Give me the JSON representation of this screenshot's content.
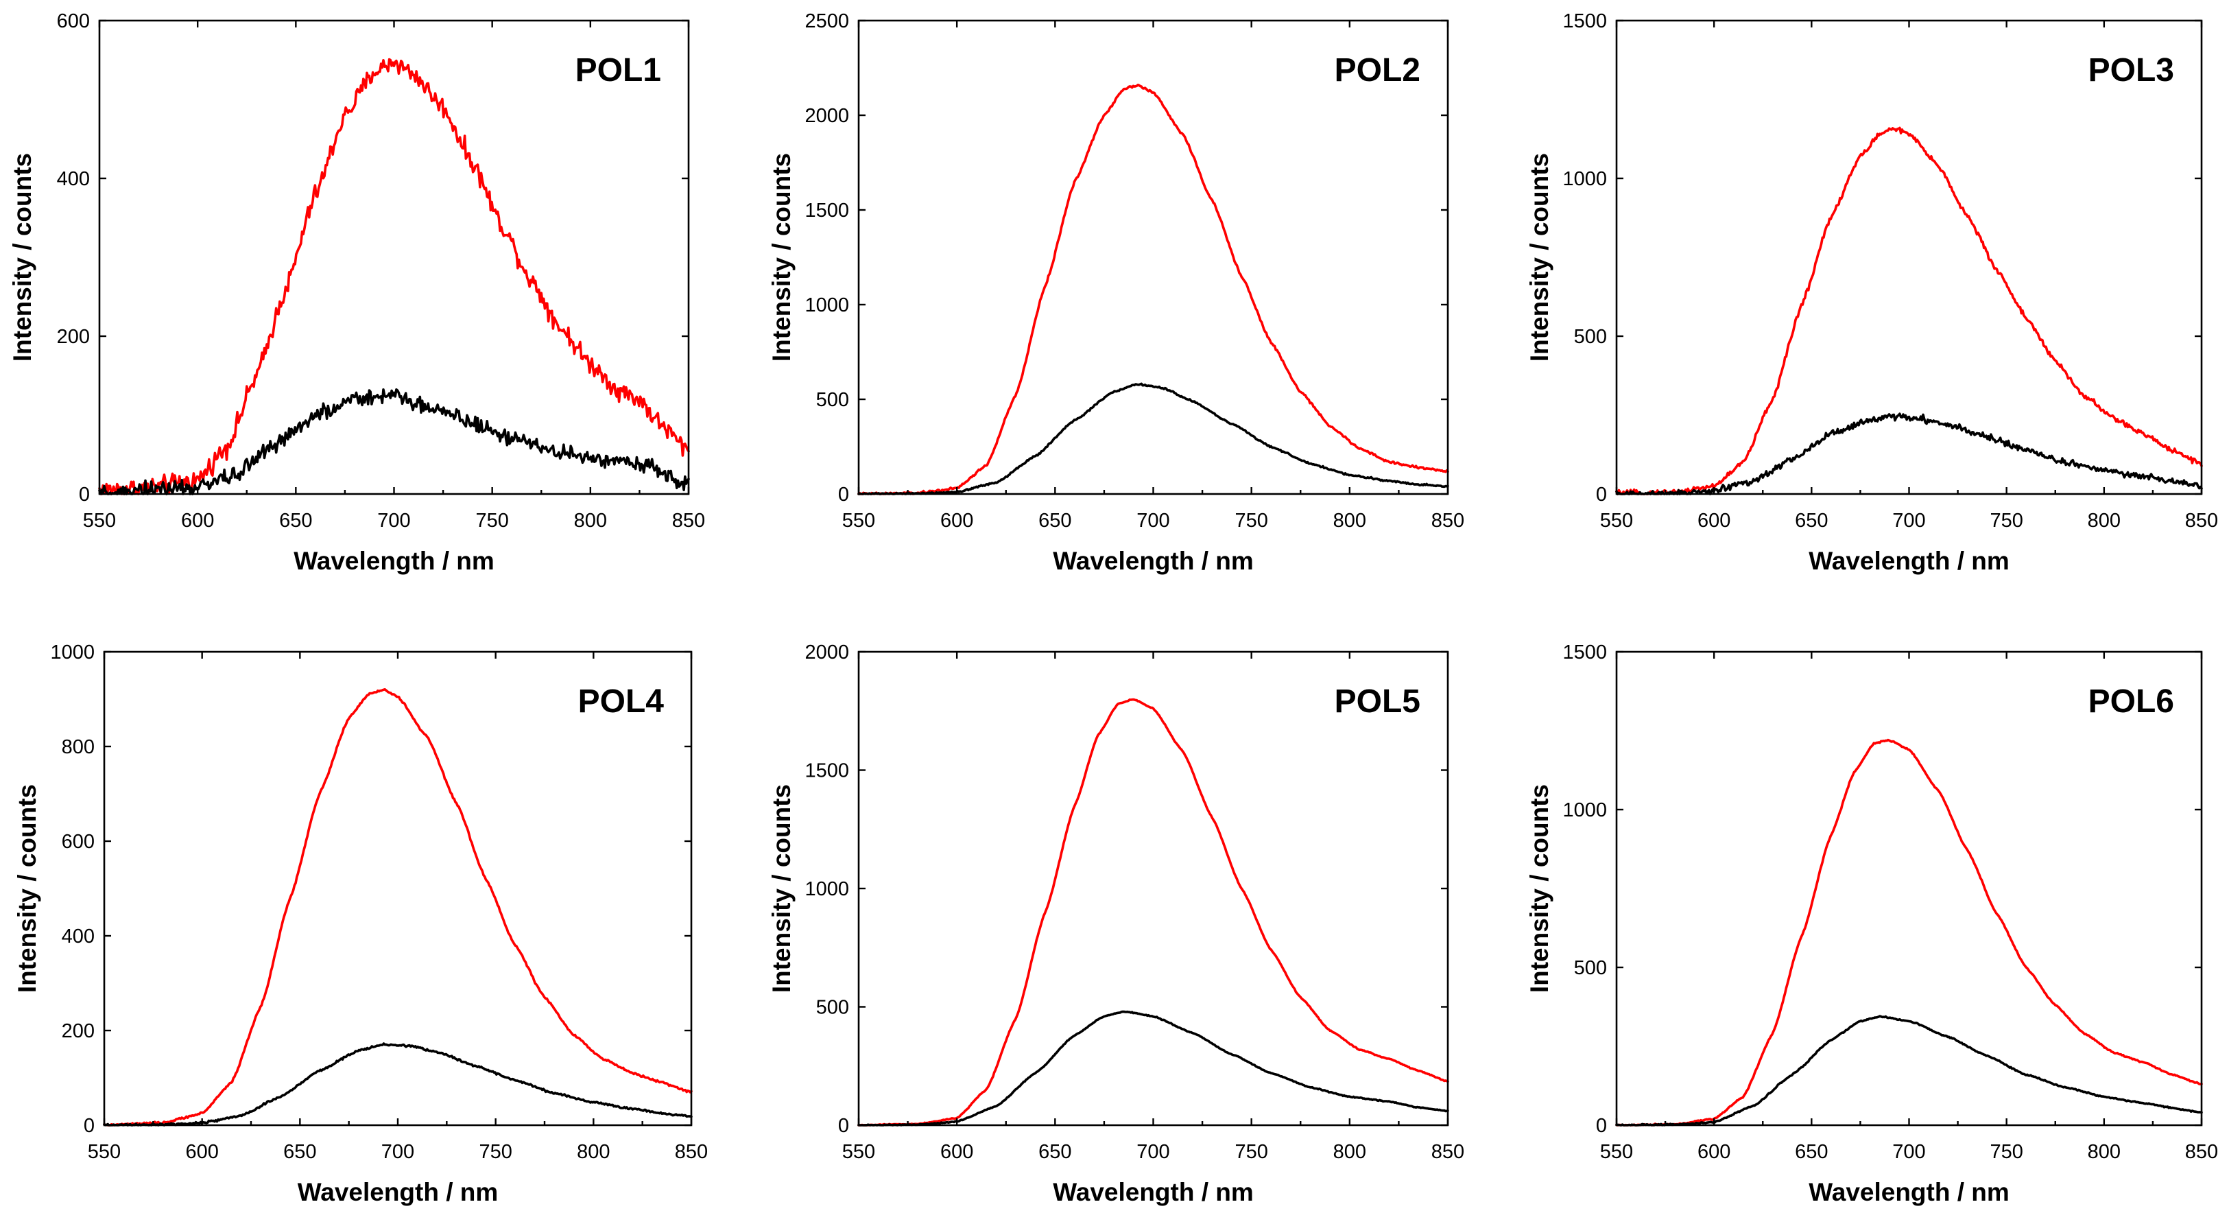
{
  "chart_data": [
    {
      "type": "line",
      "title": "POL1",
      "xlabel": "Wavelength / nm",
      "ylabel": "Intensity / counts",
      "xlim": [
        550,
        850
      ],
      "ylim": [
        0,
        600
      ],
      "xticks": [
        550,
        600,
        650,
        700,
        750,
        800,
        850
      ],
      "yticks": [
        0,
        200,
        400,
        600
      ],
      "series": [
        {
          "name": "red",
          "color": "#ff0000",
          "noise": 6,
          "x": [
            550,
            575,
            600,
            615,
            630,
            645,
            660,
            675,
            690,
            700,
            710,
            725,
            740,
            755,
            770,
            785,
            800,
            815,
            825,
            835,
            850
          ],
          "y": [
            5,
            8,
            18,
            60,
            150,
            260,
            380,
            480,
            535,
            548,
            532,
            490,
            420,
            340,
            270,
            210,
            165,
            130,
            120,
            90,
            55
          ]
        },
        {
          "name": "black",
          "color": "#000000",
          "noise": 5,
          "x": [
            550,
            575,
            600,
            620,
            640,
            660,
            680,
            700,
            720,
            740,
            760,
            780,
            800,
            825,
            850
          ],
          "y": [
            2,
            4,
            8,
            25,
            65,
            100,
            120,
            125,
            110,
            90,
            70,
            55,
            45,
            40,
            10
          ]
        }
      ]
    },
    {
      "type": "line",
      "title": "POL2",
      "xlabel": "Wavelength / nm",
      "ylabel": "Intensity / counts",
      "xlim": [
        550,
        850
      ],
      "ylim": [
        0,
        2500
      ],
      "xticks": [
        550,
        600,
        650,
        700,
        750,
        800,
        850
      ],
      "yticks": [
        0,
        500,
        1000,
        1500,
        2000,
        2500
      ],
      "series": [
        {
          "name": "red",
          "color": "#ff0000",
          "noise": 3,
          "x": [
            550,
            580,
            600,
            615,
            630,
            645,
            660,
            675,
            685,
            692,
            700,
            715,
            730,
            745,
            760,
            775,
            790,
            805,
            820,
            835,
            850
          ],
          "y": [
            0,
            5,
            30,
            150,
            520,
            1100,
            1650,
            2000,
            2140,
            2160,
            2120,
            1900,
            1550,
            1150,
            800,
            540,
            360,
            240,
            170,
            140,
            120
          ]
        },
        {
          "name": "black",
          "color": "#000000",
          "noise": 2,
          "x": [
            550,
            580,
            600,
            620,
            640,
            660,
            680,
            692,
            705,
            720,
            740,
            760,
            780,
            800,
            820,
            835,
            850
          ],
          "y": [
            0,
            2,
            10,
            60,
            200,
            390,
            540,
            580,
            560,
            490,
            370,
            250,
            160,
            100,
            70,
            50,
            40
          ]
        }
      ]
    },
    {
      "type": "line",
      "title": "POL3",
      "xlabel": "Wavelength / nm",
      "ylabel": "Intensity / counts",
      "xlim": [
        550,
        850
      ],
      "ylim": [
        0,
        1500
      ],
      "xticks": [
        550,
        600,
        650,
        700,
        750,
        800,
        850
      ],
      "yticks": [
        0,
        500,
        1000,
        1500
      ],
      "series": [
        {
          "name": "red",
          "color": "#ff0000",
          "noise": 4,
          "x": [
            550,
            580,
            600,
            615,
            630,
            645,
            660,
            675,
            685,
            692,
            700,
            715,
            730,
            745,
            760,
            775,
            790,
            805,
            820,
            835,
            850
          ],
          "y": [
            2,
            6,
            25,
            100,
            300,
            600,
            880,
            1070,
            1140,
            1160,
            1140,
            1040,
            880,
            710,
            560,
            420,
            310,
            240,
            190,
            140,
            95
          ]
        },
        {
          "name": "black",
          "color": "#000000",
          "noise": 5,
          "x": [
            550,
            580,
            600,
            620,
            640,
            660,
            680,
            692,
            705,
            720,
            740,
            760,
            780,
            800,
            820,
            835,
            850
          ],
          "y": [
            0,
            2,
            10,
            40,
            110,
            190,
            235,
            245,
            240,
            220,
            180,
            140,
            100,
            75,
            55,
            40,
            25
          ]
        }
      ]
    },
    {
      "type": "line",
      "title": "POL4",
      "xlabel": "Wavelength / nm",
      "ylabel": "Intensity / counts",
      "xlim": [
        550,
        850
      ],
      "ylim": [
        0,
        1000
      ],
      "xticks": [
        550,
        600,
        650,
        700,
        750,
        800,
        850
      ],
      "yticks": [
        0,
        200,
        400,
        600,
        800,
        1000
      ],
      "series": [
        {
          "name": "red",
          "color": "#ff0000",
          "noise": 1,
          "x": [
            550,
            580,
            600,
            615,
            630,
            645,
            660,
            675,
            685,
            693,
            700,
            715,
            730,
            745,
            760,
            775,
            790,
            805,
            820,
            835,
            850
          ],
          "y": [
            0,
            5,
            25,
            90,
            250,
            480,
            700,
            860,
            910,
            920,
            905,
            820,
            680,
            520,
            380,
            270,
            190,
            140,
            110,
            90,
            70
          ]
        },
        {
          "name": "black",
          "color": "#000000",
          "noise": 1,
          "x": [
            550,
            580,
            600,
            620,
            640,
            660,
            680,
            693,
            705,
            720,
            740,
            760,
            780,
            800,
            820,
            835,
            850
          ],
          "y": [
            0,
            1,
            5,
            20,
            60,
            115,
            158,
            170,
            168,
            155,
            125,
            95,
            68,
            48,
            35,
            25,
            18
          ]
        }
      ]
    },
    {
      "type": "line",
      "title": "POL5",
      "xlabel": "Wavelength / nm",
      "ylabel": "Intensity / counts",
      "xlim": [
        550,
        850
      ],
      "ylim": [
        0,
        2000
      ],
      "xticks": [
        550,
        600,
        650,
        700,
        750,
        800,
        850
      ],
      "yticks": [
        0,
        500,
        1000,
        1500,
        2000
      ],
      "series": [
        {
          "name": "red",
          "color": "#ff0000",
          "noise": 1,
          "x": [
            550,
            580,
            600,
            615,
            630,
            645,
            660,
            672,
            682,
            690,
            700,
            715,
            730,
            745,
            760,
            775,
            790,
            805,
            820,
            835,
            850
          ],
          "y": [
            0,
            5,
            30,
            150,
            450,
            900,
            1350,
            1650,
            1780,
            1800,
            1760,
            1580,
            1300,
            1000,
            740,
            540,
            400,
            320,
            280,
            230,
            185
          ]
        },
        {
          "name": "black",
          "color": "#000000",
          "noise": 1,
          "x": [
            550,
            580,
            600,
            620,
            640,
            660,
            675,
            685,
            700,
            720,
            740,
            760,
            780,
            800,
            820,
            835,
            850
          ],
          "y": [
            0,
            2,
            15,
            80,
            220,
            380,
            460,
            480,
            460,
            390,
            300,
            220,
            160,
            120,
            100,
            75,
            60
          ]
        }
      ]
    },
    {
      "type": "line",
      "title": "POL6",
      "xlabel": "Wavelength / nm",
      "ylabel": "Intensity / counts",
      "xlim": [
        550,
        850
      ],
      "ylim": [
        0,
        1500
      ],
      "xticks": [
        550,
        600,
        650,
        700,
        750,
        800,
        850
      ],
      "yticks": [
        0,
        500,
        1000,
        1500
      ],
      "series": [
        {
          "name": "red",
          "color": "#ff0000",
          "noise": 1,
          "x": [
            550,
            580,
            600,
            615,
            630,
            645,
            660,
            672,
            682,
            690,
            700,
            715,
            730,
            745,
            760,
            775,
            790,
            805,
            820,
            835,
            850
          ],
          "y": [
            0,
            3,
            20,
            90,
            290,
            600,
            920,
            1120,
            1210,
            1220,
            1190,
            1060,
            870,
            670,
            500,
            380,
            290,
            230,
            200,
            160,
            130
          ]
        },
        {
          "name": "black",
          "color": "#000000",
          "noise": 1,
          "x": [
            550,
            580,
            600,
            620,
            640,
            660,
            675,
            685,
            700,
            720,
            740,
            760,
            780,
            800,
            820,
            835,
            850
          ],
          "y": [
            0,
            2,
            10,
            60,
            160,
            270,
            330,
            345,
            330,
            280,
            220,
            160,
            120,
            90,
            70,
            55,
            40
          ]
        }
      ]
    }
  ]
}
